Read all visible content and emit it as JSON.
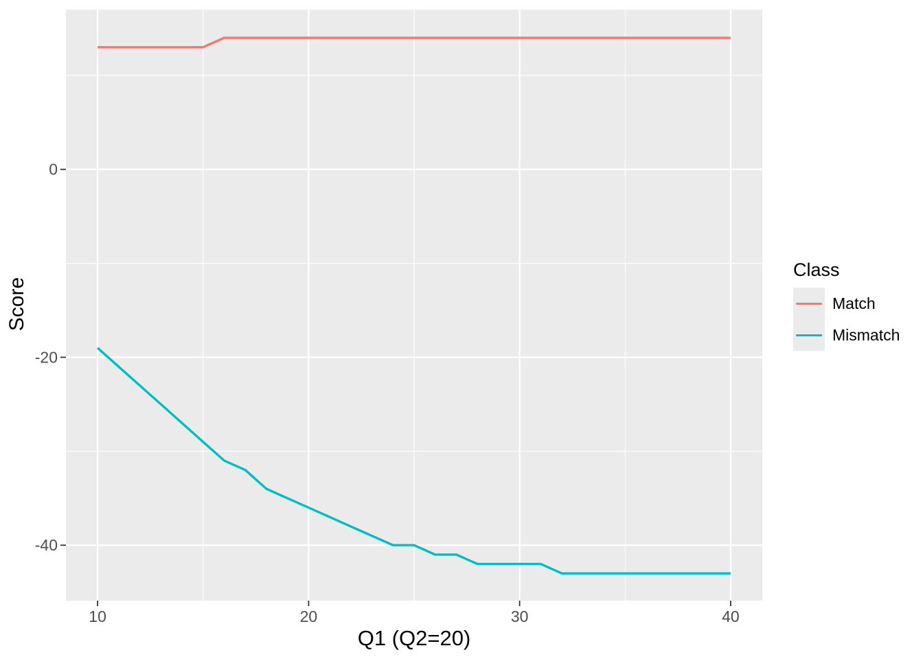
{
  "chart_data": {
    "type": "line",
    "title": "",
    "xlabel": "Q1 (Q2=20)",
    "ylabel": "Score",
    "x": [
      10,
      11,
      12,
      13,
      14,
      15,
      16,
      17,
      18,
      19,
      20,
      21,
      22,
      23,
      24,
      25,
      26,
      27,
      28,
      29,
      30,
      31,
      32,
      33,
      34,
      35,
      36,
      37,
      38,
      39,
      40
    ],
    "series": [
      {
        "name": "Match",
        "color": "#F8766D",
        "values": [
          13,
          13,
          13,
          13,
          13,
          13,
          14,
          14,
          14,
          14,
          14,
          14,
          14,
          14,
          14,
          14,
          14,
          14,
          14,
          14,
          14,
          14,
          14,
          14,
          14,
          14,
          14,
          14,
          14,
          14,
          14
        ]
      },
      {
        "name": "Mismatch",
        "color": "#00BFC4",
        "values": [
          -19,
          -21,
          -23,
          -25,
          -27,
          -29,
          -31,
          -32,
          -34,
          -35,
          -36,
          -37,
          -38,
          -39,
          -40,
          -40,
          -41,
          -41,
          -42,
          -42,
          -42,
          -42,
          -43,
          -43,
          -43,
          -43,
          -43,
          -43,
          -43,
          -43,
          -43
        ]
      }
    ],
    "x_ticks": [
      10,
      20,
      30,
      40
    ],
    "y_ticks": [
      0,
      -20,
      -40
    ],
    "x_minor_ticks": [
      15,
      25,
      35
    ],
    "y_minor_ticks": [
      10,
      -10,
      -30
    ],
    "xlim": [
      8.5,
      41.5
    ],
    "ylim": [
      -45.9,
      17.0
    ],
    "legend": {
      "title": "Class",
      "position": "right"
    },
    "grid": "on",
    "panel_bg": "#EBEBEB",
    "grid_color": "#FFFFFF",
    "tick_color": "#333333",
    "tick_label_color": "#4D4D4D"
  }
}
